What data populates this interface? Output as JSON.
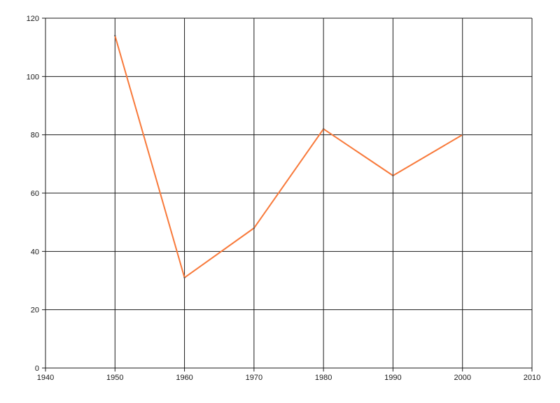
{
  "chart_data": {
    "type": "line",
    "title": "",
    "xlabel": "",
    "ylabel": "",
    "x": [
      1950,
      1960,
      1970,
      1980,
      1990,
      2000
    ],
    "values": [
      114,
      31,
      48,
      82,
      66,
      80
    ],
    "xlim": [
      1940,
      2010
    ],
    "ylim": [
      0,
      120
    ],
    "x_ticks": [
      1940,
      1950,
      1960,
      1970,
      1980,
      1990,
      2000,
      2010
    ],
    "y_ticks": [
      0,
      20,
      40,
      60,
      80,
      100,
      120
    ],
    "grid": true,
    "legend": "none",
    "line_color": "#f8793a",
    "marker_color": "#555555",
    "grid_color": "#1a1a1a",
    "axis_color": "#1a1a1a",
    "background_color": "#ffffff"
  }
}
